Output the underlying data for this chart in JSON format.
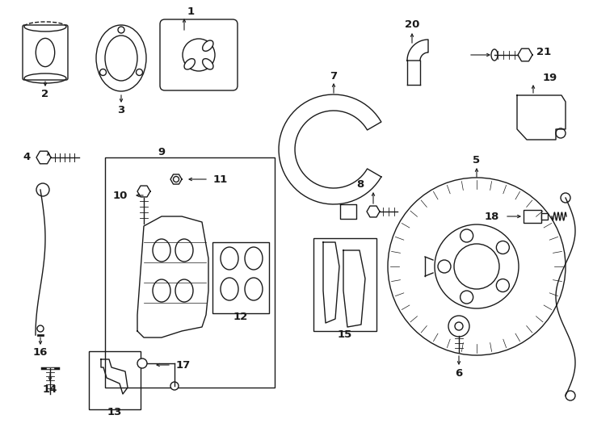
{
  "bg_color": "#ffffff",
  "line_color": "#1a1a1a",
  "fig_width": 7.34,
  "fig_height": 5.4,
  "dpi": 100,
  "lw": 1.0
}
